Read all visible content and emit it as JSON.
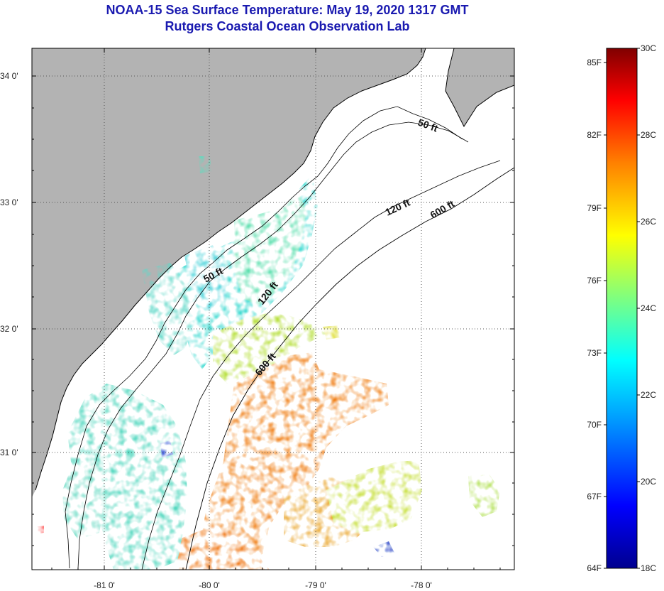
{
  "header": {
    "title": "NOAA-15 Sea Surface Temperature:  May 19, 2020 1317 GMT",
    "subtitle": "Rutgers Coastal Ocean Observation Lab"
  },
  "map": {
    "lon_ticks": [
      "-81 0'",
      "-80 0'",
      "-79 0'",
      "-78 0'"
    ],
    "lat_ticks": [
      "34 0'",
      "33 0'",
      "32 0'",
      "31 0'"
    ],
    "contours": [
      {
        "label": "50 ft",
        "name": "contour-50ft"
      },
      {
        "label": "120 ft",
        "name": "contour-120ft"
      },
      {
        "label": "600 ft",
        "name": "contour-600ft"
      }
    ],
    "colors": {
      "land": "#b3b3b3",
      "no_data": "#ffffff",
      "coast": "#000000"
    }
  },
  "colorbar": {
    "fahrenheit": [
      "85F",
      "82F",
      "79F",
      "76F",
      "73F",
      "70F",
      "67F",
      "64F"
    ],
    "celsius": [
      "30C",
      "28C",
      "26C",
      "24C",
      "22C",
      "20C",
      "18C"
    ],
    "range_c": [
      18,
      30
    ]
  }
}
